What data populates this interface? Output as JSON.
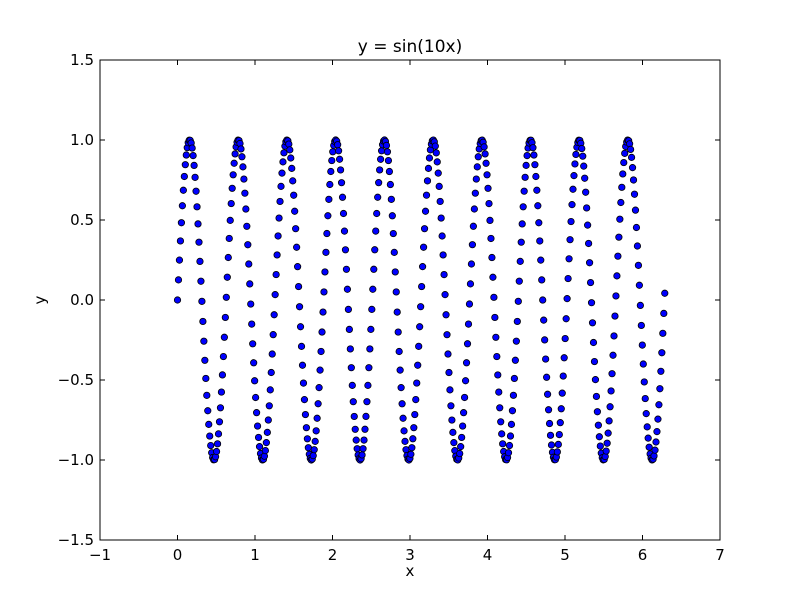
{
  "chart_data": {
    "type": "scatter",
    "title": "y = sin(10x)",
    "xlabel": "x",
    "ylabel": "y",
    "xlim": [
      -1,
      7
    ],
    "ylim": [
      -1.5,
      1.5
    ],
    "xticks": [
      -1,
      0,
      1,
      2,
      3,
      4,
      5,
      6,
      7
    ],
    "yticks": [
      -1.5,
      -1.0,
      -0.5,
      0.0,
      0.5,
      1.0,
      1.5
    ],
    "xtick_labels": [
      "−1",
      "0",
      "1",
      "2",
      "3",
      "4",
      "5",
      "6",
      "7"
    ],
    "ytick_labels": [
      "−1.5",
      "−1.0",
      "−0.5",
      "0.0",
      "0.5",
      "1.0",
      "1.5"
    ],
    "grid": false,
    "marker_color": "#0000ff",
    "marker_edge_color": "#000000",
    "series": [
      {
        "x": [
          0,
          0.0126,
          0.0252,
          0.0378,
          0.0504,
          0.063,
          0.0756,
          0.0882,
          0.1008,
          0.1134,
          0.126,
          0.1386,
          0.1512,
          0.1638,
          0.1764,
          0.189,
          0.2016,
          0.2142,
          0.2268,
          0.2394,
          0.252,
          0.2646,
          0.2772,
          0.2898,
          0.3024,
          0.315,
          0.3276,
          0.3402,
          0.3528,
          0.3654,
          0.378,
          0.3906,
          0.4032,
          0.4158,
          0.4284,
          0.441,
          0.4536,
          0.4662,
          0.4788,
          0.4914,
          0.504,
          0.5166,
          0.5292,
          0.5418,
          0.5544,
          0.567,
          0.5796,
          0.5922,
          0.6048,
          0.6174,
          0.63,
          0.6426,
          0.6552,
          0.6678,
          0.6804,
          0.693,
          0.7056,
          0.7182,
          0.7308,
          0.7434,
          0.756,
          0.7686,
          0.7812,
          0.7938,
          0.8064,
          0.819,
          0.8316,
          0.8442,
          0.8568,
          0.8694,
          0.882,
          0.8946,
          0.9072,
          0.9198,
          0.9324,
          0.945,
          0.9576,
          0.9702,
          0.9828,
          0.9954,
          1.008,
          1.0206,
          1.0332,
          1.0458,
          1.0584,
          1.071,
          1.0836,
          1.0962,
          1.1088,
          1.1214,
          1.134,
          1.1466,
          1.1592,
          1.1718,
          1.1844,
          1.197,
          1.2096,
          1.2222,
          1.2348,
          1.2474,
          1.26,
          1.2726,
          1.2852,
          1.2978,
          1.3104,
          1.323,
          1.3356,
          1.3482,
          1.3608,
          1.3734,
          1.386,
          1.3986,
          1.4112,
          1.4238,
          1.4364,
          1.449,
          1.4616,
          1.4742,
          1.4868,
          1.4994,
          1.512,
          1.5246,
          1.5372,
          1.5498,
          1.5624,
          1.575,
          1.5876,
          1.6002,
          1.6128,
          1.6254,
          1.638,
          1.6506,
          1.6632,
          1.6758,
          1.6884,
          1.701,
          1.7136,
          1.7262,
          1.7388,
          1.7514,
          1.764,
          1.7766,
          1.7892,
          1.8018,
          1.8144,
          1.827,
          1.8396,
          1.8522,
          1.8648,
          1.8774,
          1.89,
          1.9026,
          1.9152,
          1.9278,
          1.9404,
          1.953,
          1.9656,
          1.9782,
          1.9908,
          2.0034,
          2.016,
          2.0286,
          2.0412,
          2.0538,
          2.0664,
          2.079,
          2.0916,
          2.1042,
          2.1168,
          2.1294,
          2.142,
          2.1546,
          2.1672,
          2.1798,
          2.1924,
          2.205,
          2.2176,
          2.2302,
          2.2428,
          2.2554,
          2.268,
          2.2806,
          2.2932,
          2.3058,
          2.3184,
          2.331,
          2.3436,
          2.3562,
          2.3688,
          2.3814,
          2.394,
          2.4066,
          2.4192,
          2.4318,
          2.4444,
          2.457,
          2.4696,
          2.4822,
          2.4948,
          2.5074,
          2.52,
          2.5326,
          2.5452,
          2.5578,
          2.5704,
          2.583,
          2.5956,
          2.6082,
          2.6208,
          2.6334,
          2.646,
          2.6586,
          2.6712,
          2.6838,
          2.6964,
          2.709,
          2.7216,
          2.7342,
          2.7468,
          2.7594,
          2.772,
          2.7846,
          2.7972,
          2.8098,
          2.8224,
          2.835,
          2.8476,
          2.8602,
          2.8728,
          2.8854,
          2.898,
          2.9106,
          2.9232,
          2.9358,
          2.9484,
          2.961,
          2.9736,
          2.9862,
          2.9988,
          3.0114,
          3.024,
          3.0366,
          3.0492,
          3.0618,
          3.0744,
          3.087,
          3.0996,
          3.1122,
          3.1248,
          3.1374,
          3.15,
          3.1626,
          3.1752,
          3.1878,
          3.2004,
          3.213,
          3.2256,
          3.2382,
          3.2508,
          3.2634,
          3.276,
          3.2886,
          3.3012,
          3.3138,
          3.3264,
          3.339,
          3.3516,
          3.3642,
          3.3768,
          3.3894,
          3.402,
          3.4146,
          3.4272,
          3.4398,
          3.4524,
          3.465,
          3.4776,
          3.4902,
          3.5028,
          3.5154,
          3.528,
          3.5406,
          3.5532,
          3.5658,
          3.5784,
          3.591,
          3.6036,
          3.6162,
          3.6288,
          3.6414,
          3.654,
          3.6666,
          3.6792,
          3.6918,
          3.7044,
          3.717,
          3.7296,
          3.7422,
          3.7548,
          3.7674,
          3.78,
          3.7926,
          3.8052,
          3.8178,
          3.8304,
          3.843,
          3.8556,
          3.8682,
          3.8808,
          3.8934,
          3.906,
          3.9186,
          3.9312,
          3.9438,
          3.9564,
          3.969,
          3.9816,
          3.9942,
          4.0068,
          4.0194,
          4.032,
          4.0446,
          4.0572,
          4.0698,
          4.0824,
          4.095,
          4.1076,
          4.1202,
          4.1328,
          4.1454,
          4.158,
          4.1706,
          4.1832,
          4.1958,
          4.2084,
          4.221,
          4.2336,
          4.2462,
          4.2588,
          4.2714,
          4.284,
          4.2966,
          4.3092,
          4.3218,
          4.3344,
          4.347,
          4.3596,
          4.3722,
          4.3848,
          4.3974,
          4.41,
          4.4226,
          4.4352,
          4.4478,
          4.4604,
          4.473,
          4.4856,
          4.4982,
          4.5108,
          4.5234,
          4.536,
          4.5486,
          4.5612,
          4.5738,
          4.5864,
          4.599,
          4.6116,
          4.6242,
          4.6368,
          4.6494,
          4.662,
          4.6746,
          4.6872,
          4.6998,
          4.7124,
          4.725,
          4.7376,
          4.7502,
          4.7628,
          4.7754,
          4.788,
          4.8006,
          4.8132,
          4.8258,
          4.8384,
          4.851,
          4.8636,
          4.8762,
          4.8888,
          4.9014,
          4.914,
          4.9266,
          4.9392,
          4.9518,
          4.9644,
          4.977,
          4.9896,
          5.0022,
          5.0148,
          5.0274,
          5.04,
          5.0526,
          5.0652,
          5.0778,
          5.0904,
          5.103,
          5.1156,
          5.1282,
          5.1408,
          5.1534,
          5.166,
          5.1786,
          5.1912,
          5.2038,
          5.2164,
          5.229,
          5.2416,
          5.2542,
          5.2668,
          5.2794,
          5.292,
          5.3046,
          5.3172,
          5.3298,
          5.3424,
          5.355,
          5.3676,
          5.3802,
          5.3928,
          5.4054,
          5.418,
          5.4306,
          5.4432,
          5.4558,
          5.4684,
          5.481,
          5.4936,
          5.5062,
          5.5188,
          5.5314,
          5.544,
          5.5566,
          5.5692,
          5.5818,
          5.5944,
          5.607,
          5.6196,
          5.6322,
          5.6448,
          5.6574,
          5.67,
          5.6826,
          5.6952,
          5.7078,
          5.7204,
          5.733,
          5.7456,
          5.7582,
          5.7708,
          5.7834,
          5.796,
          5.8086,
          5.8212,
          5.8338,
          5.8464,
          5.859,
          5.8716,
          5.8842,
          5.8968,
          5.9094,
          5.922,
          5.9346,
          5.9472,
          5.9598,
          5.9724,
          5.985,
          5.9976,
          6.0102,
          6.0228,
          6.0354,
          6.048,
          6.0606,
          6.0732,
          6.0858,
          6.0984,
          6.111,
          6.1236,
          6.1362,
          6.1488,
          6.1614,
          6.174,
          6.1866,
          6.1992,
          6.2118,
          6.2244,
          6.237,
          6.2496,
          6.2622,
          6.2748,
          6.2874
        ],
        "y": "sin(10x)"
      }
    ]
  }
}
